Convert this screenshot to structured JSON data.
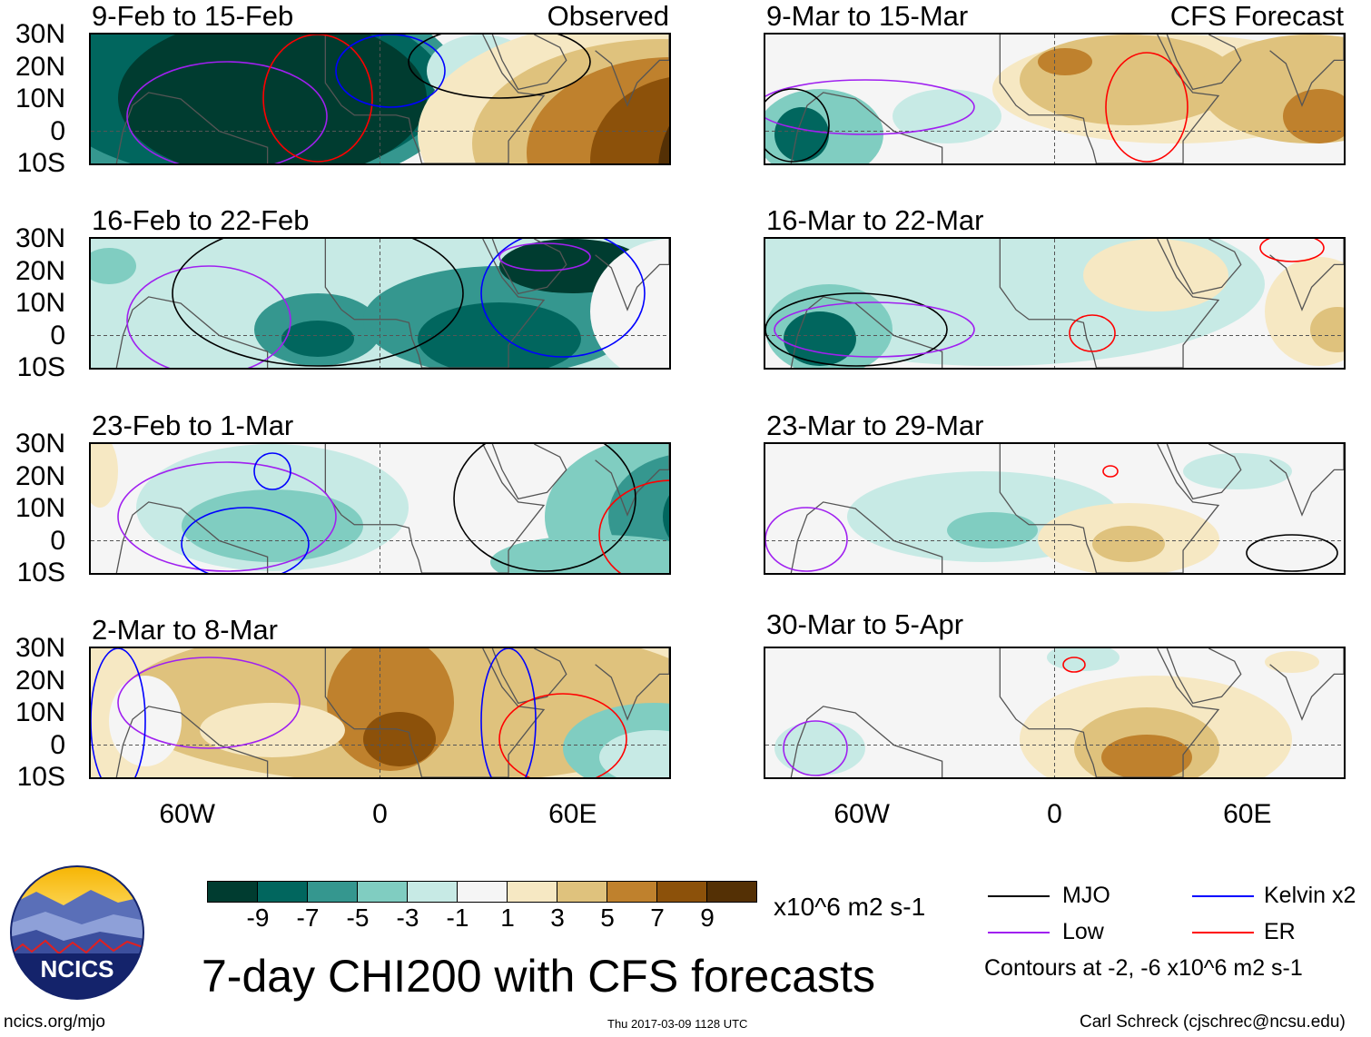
{
  "panels": [
    {
      "title": "9-Feb to 15-Feb",
      "tag": "Observed"
    },
    {
      "title": "16-Feb to 22-Feb"
    },
    {
      "title": "23-Feb to 1-Mar"
    },
    {
      "title": "2-Mar to 8-Mar"
    },
    {
      "title": "9-Mar to 15-Mar",
      "tag": "CFS Forecast"
    },
    {
      "title": "16-Mar to 22-Mar"
    },
    {
      "title": "23-Mar to 29-Mar"
    },
    {
      "title": "30-Mar to 5-Apr"
    }
  ],
  "lat_labels": [
    "30N",
    "20N",
    "10N",
    "0",
    "10S"
  ],
  "lon_labels": [
    "60W",
    "0",
    "60E"
  ],
  "colorbar": {
    "colors": [
      "#003c30",
      "#01665e",
      "#35978f",
      "#80cdc1",
      "#c7eae5",
      "#f5f5f5",
      "#f6e8c3",
      "#dfc27d",
      "#bf812d",
      "#8c510a",
      "#543005"
    ],
    "labels": [
      "-9",
      "-7",
      "-5",
      "-3",
      "-1",
      "1",
      "3",
      "5",
      "7",
      "9"
    ],
    "units": "x10^6 m2 s-1"
  },
  "legend": {
    "items": [
      {
        "label": "MJO",
        "color": "#000000"
      },
      {
        "label": "Kelvin x2",
        "color": "#0000ff"
      },
      {
        "label": "Low",
        "color": "#a020f0"
      },
      {
        "label": "ER",
        "color": "#ff0000"
      }
    ],
    "note": "Contours at -2, -6 x10^6 m2 s-1"
  },
  "title": "7-day CHI200 with CFS forecasts",
  "logo_text": "NCICS",
  "footer": {
    "left": "ncics.org/mjo",
    "center": "Thu 2017-03-09 1128 UTC",
    "right": "Carl Schreck (cjschrec@ncsu.edu)"
  }
}
